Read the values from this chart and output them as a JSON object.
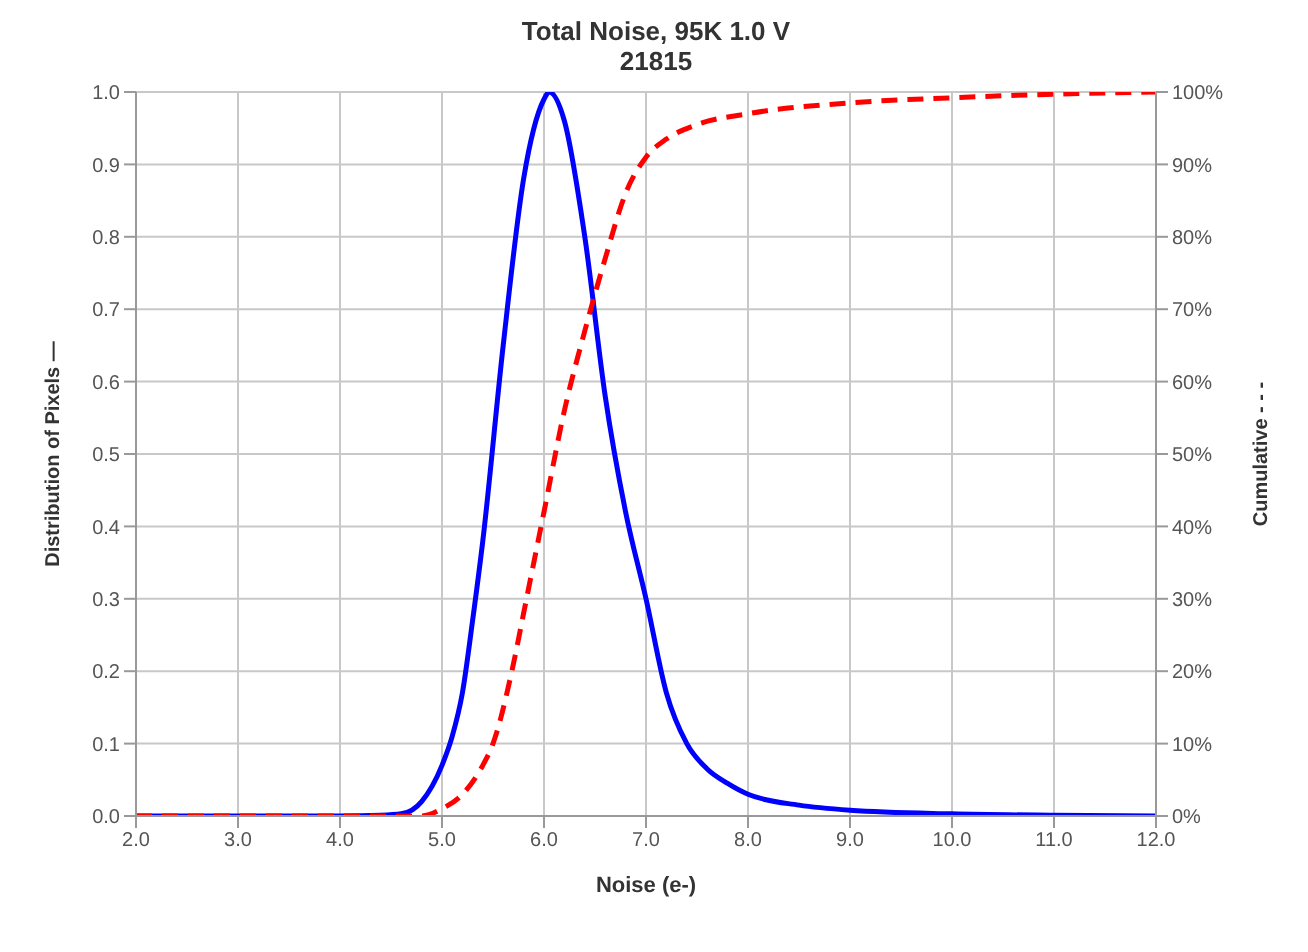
{
  "chart_data": {
    "type": "line",
    "title": "Total Noise, 95K 1.0 V",
    "subtitle": "21815",
    "xlabel": "Noise (e-)",
    "ylabel": "Distribution of Pixels —",
    "y2label": "Cumulative - - -",
    "xlim": [
      2,
      12
    ],
    "xticks": [
      {
        "value": 2,
        "label": "2.0"
      },
      {
        "value": 3,
        "label": "3.0"
      },
      {
        "value": 4,
        "label": "4.0"
      },
      {
        "value": 5,
        "label": "5.0"
      },
      {
        "value": 6,
        "label": "6.0"
      },
      {
        "value": 7,
        "label": "7.0"
      },
      {
        "value": 8,
        "label": "8.0"
      },
      {
        "value": 9,
        "label": "9.0"
      },
      {
        "value": 10,
        "label": "10.0"
      },
      {
        "value": 11,
        "label": "11.0"
      },
      {
        "value": 12,
        "label": "12.0"
      }
    ],
    "ylim": [
      0,
      1
    ],
    "yticks": [
      {
        "value": 0,
        "label": "0.0"
      },
      0.1,
      0.2,
      0.3,
      0.4,
      0.5,
      0.6,
      0.7,
      0.8,
      0.9,
      {
        "value": 1,
        "label": "1.0"
      }
    ],
    "y2lim": [
      0,
      100
    ],
    "y2ticks": [
      {
        "value": 0,
        "label": "0%"
      },
      {
        "value": 10,
        "label": "10%"
      },
      {
        "value": 20,
        "label": "20%"
      },
      {
        "value": 30,
        "label": "30%"
      },
      {
        "value": 40,
        "label": "40%"
      },
      {
        "value": 50,
        "label": "50%"
      },
      {
        "value": 60,
        "label": "60%"
      },
      {
        "value": 70,
        "label": "70%"
      },
      {
        "value": 80,
        "label": "80%"
      },
      {
        "value": 90,
        "label": "90%"
      },
      {
        "value": 100,
        "label": "100%"
      }
    ],
    "grid": true,
    "legend": false,
    "marker": "none",
    "series": [
      {
        "color": "#0000ff",
        "line_style": "solid",
        "x": [
          2,
          3,
          4,
          4.4,
          4.6,
          4.8,
          5.0,
          5.1,
          5.2,
          5.3,
          5.4,
          5.6,
          5.8,
          6.0,
          6.05,
          6.2,
          6.4,
          6.6,
          6.8,
          7.0,
          7.2,
          7.4,
          7.6,
          7.8,
          8.0,
          8.5,
          9.0,
          10,
          11,
          12
        ],
        "values": [
          0,
          0,
          0,
          0.001,
          0.003,
          0.02,
          0.07,
          0.11,
          0.17,
          0.27,
          0.38,
          0.65,
          0.88,
          0.99,
          1.0,
          0.96,
          0.8,
          0.58,
          0.42,
          0.3,
          0.17,
          0.1,
          0.065,
          0.045,
          0.03,
          0.015,
          0.008,
          0.003,
          0.001,
          0
        ]
      },
      {
        "color": "#ff0000",
        "line_style": "dashed",
        "axis": "y2",
        "x": [
          2,
          3,
          4,
          4.8,
          5.0,
          5.2,
          5.4,
          5.5,
          5.7,
          5.8,
          6.0,
          6.2,
          6.4,
          6.6,
          6.8,
          7.0,
          7.2,
          7.5,
          8.0,
          9.0,
          10,
          11,
          12
        ],
        "values": [
          0,
          0,
          0,
          0,
          1,
          3,
          7,
          10,
          21,
          28,
          42,
          56,
          67,
          77,
          86,
          91,
          93.5,
          95.5,
          97,
          98.5,
          99.2,
          99.7,
          100
        ]
      }
    ]
  }
}
